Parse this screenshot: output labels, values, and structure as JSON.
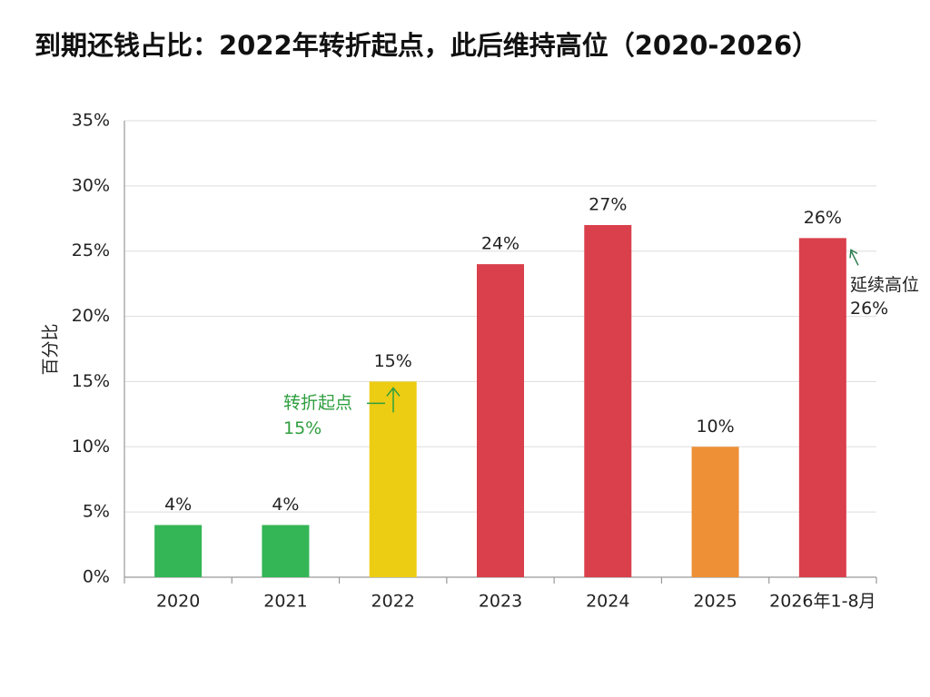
{
  "chart_data": {
    "type": "bar",
    "title": "到期还钱占比：2022年转折起点，此后维持高位（2020-2026）",
    "y_label": "百分比",
    "categories": [
      "2020",
      "2021",
      "2022",
      "2023",
      "2024",
      "2025",
      "2026年1-8月"
    ],
    "values": [
      4,
      4,
      15,
      24,
      27,
      10,
      26
    ],
    "value_labels": [
      "4%",
      "4%",
      "15%",
      "24%",
      "27%",
      "10%",
      "26%"
    ],
    "colors": [
      "#34b556",
      "#34b556",
      "#edcc14",
      "#d9404b",
      "#d9404b",
      "#ee9036",
      "#d9404b"
    ],
    "ylim": [
      0,
      35
    ],
    "yticks": [
      {
        "value": 0,
        "label": "0%"
      },
      {
        "value": 5,
        "label": "5%"
      },
      {
        "value": 10,
        "label": "10%"
      },
      {
        "value": 15,
        "label": "15%"
      },
      {
        "value": 20,
        "label": "20%"
      },
      {
        "value": 25,
        "label": "25%"
      },
      {
        "value": 30,
        "label": "30%"
      },
      {
        "value": 35,
        "label": "35%"
      }
    ],
    "grid": true,
    "annotations": [
      {
        "lines": [
          "转折起点",
          "15%"
        ],
        "color": "#2e9e3e"
      },
      {
        "lines": [
          "延续高位",
          "26%"
        ],
        "color": "#222222"
      }
    ]
  }
}
